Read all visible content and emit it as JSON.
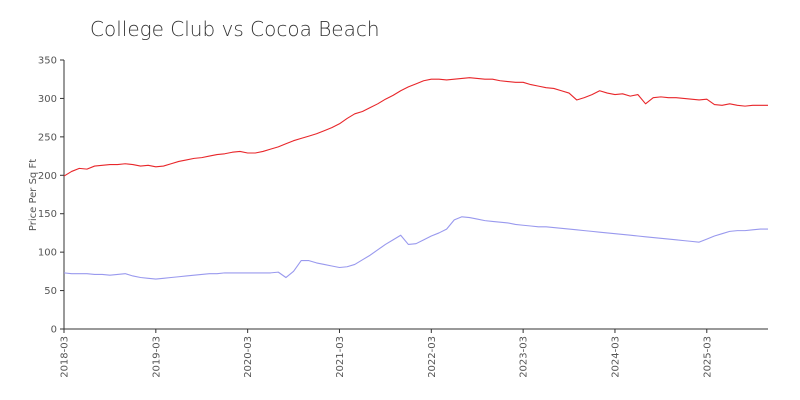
{
  "chart_data": {
    "type": "line",
    "title": "College Club vs Cocoa Beach",
    "xlabel": "",
    "ylabel": "Price Per Sq Ft",
    "xlim": [
      "2018-03",
      "2025-11"
    ],
    "ylim": [
      0,
      350
    ],
    "yticks": [
      0,
      50,
      100,
      150,
      200,
      250,
      300,
      350
    ],
    "xticks": [
      "2018-03",
      "2019-03",
      "2020-03",
      "2021-03",
      "2022-03",
      "2023-03",
      "2024-03",
      "2025-03"
    ],
    "grid": false,
    "legend": "none",
    "series": [
      {
        "color": "#e8262a",
        "points": [
          [
            "2018-03",
            199
          ],
          [
            "2018-04",
            205
          ],
          [
            "2018-05",
            209
          ],
          [
            "2018-06",
            208
          ],
          [
            "2018-07",
            212
          ],
          [
            "2018-08",
            213
          ],
          [
            "2018-09",
            214
          ],
          [
            "2018-10",
            214
          ],
          [
            "2018-11",
            215
          ],
          [
            "2018-12",
            214
          ],
          [
            "2019-01",
            212
          ],
          [
            "2019-02",
            213
          ],
          [
            "2019-03",
            211
          ],
          [
            "2019-04",
            212
          ],
          [
            "2019-05",
            215
          ],
          [
            "2019-06",
            218
          ],
          [
            "2019-07",
            220
          ],
          [
            "2019-08",
            222
          ],
          [
            "2019-09",
            223
          ],
          [
            "2019-10",
            225
          ],
          [
            "2019-11",
            227
          ],
          [
            "2019-12",
            228
          ],
          [
            "2020-01",
            230
          ],
          [
            "2020-02",
            231
          ],
          [
            "2020-03",
            229
          ],
          [
            "2020-04",
            229
          ],
          [
            "2020-05",
            231
          ],
          [
            "2020-06",
            234
          ],
          [
            "2020-07",
            237
          ],
          [
            "2020-08",
            241
          ],
          [
            "2020-09",
            245
          ],
          [
            "2020-10",
            248
          ],
          [
            "2020-11",
            251
          ],
          [
            "2020-12",
            254
          ],
          [
            "2021-01",
            258
          ],
          [
            "2021-02",
            262
          ],
          [
            "2021-03",
            267
          ],
          [
            "2021-04",
            274
          ],
          [
            "2021-05",
            280
          ],
          [
            "2021-06",
            283
          ],
          [
            "2021-07",
            288
          ],
          [
            "2021-08",
            293
          ],
          [
            "2021-09",
            299
          ],
          [
            "2021-10",
            304
          ],
          [
            "2021-11",
            310
          ],
          [
            "2021-12",
            315
          ],
          [
            "2022-01",
            319
          ],
          [
            "2022-02",
            323
          ],
          [
            "2022-03",
            325
          ],
          [
            "2022-04",
            325
          ],
          [
            "2022-05",
            324
          ],
          [
            "2022-06",
            325
          ],
          [
            "2022-07",
            326
          ],
          [
            "2022-08",
            327
          ],
          [
            "2022-09",
            326
          ],
          [
            "2022-10",
            325
          ],
          [
            "2022-11",
            325
          ],
          [
            "2022-12",
            323
          ],
          [
            "2023-01",
            322
          ],
          [
            "2023-02",
            321
          ],
          [
            "2023-03",
            321
          ],
          [
            "2023-04",
            318
          ],
          [
            "2023-05",
            316
          ],
          [
            "2023-06",
            314
          ],
          [
            "2023-07",
            313
          ],
          [
            "2023-08",
            310
          ],
          [
            "2023-09",
            307
          ],
          [
            "2023-10",
            298
          ],
          [
            "2023-11",
            301
          ],
          [
            "2023-12",
            305
          ],
          [
            "2024-01",
            310
          ],
          [
            "2024-02",
            307
          ],
          [
            "2024-03",
            305
          ],
          [
            "2024-04",
            306
          ],
          [
            "2024-05",
            303
          ],
          [
            "2024-06",
            305
          ],
          [
            "2024-07",
            293
          ],
          [
            "2024-08",
            301
          ],
          [
            "2024-09",
            302
          ],
          [
            "2024-10",
            301
          ],
          [
            "2024-11",
            301
          ],
          [
            "2024-12",
            300
          ],
          [
            "2025-01",
            299
          ],
          [
            "2025-02",
            298
          ],
          [
            "2025-03",
            299
          ],
          [
            "2025-04",
            292
          ],
          [
            "2025-05",
            291
          ],
          [
            "2025-06",
            293
          ],
          [
            "2025-07",
            291
          ],
          [
            "2025-08",
            290
          ],
          [
            "2025-09",
            291
          ],
          [
            "2025-10",
            291
          ],
          [
            "2025-11",
            291
          ]
        ]
      },
      {
        "color": "#9999ee",
        "points": [
          [
            "2018-03",
            73
          ],
          [
            "2018-04",
            72
          ],
          [
            "2018-05",
            72
          ],
          [
            "2018-06",
            72
          ],
          [
            "2018-07",
            71
          ],
          [
            "2018-08",
            71
          ],
          [
            "2018-09",
            70
          ],
          [
            "2018-10",
            71
          ],
          [
            "2018-11",
            72
          ],
          [
            "2018-12",
            69
          ],
          [
            "2019-01",
            67
          ],
          [
            "2019-02",
            66
          ],
          [
            "2019-03",
            65
          ],
          [
            "2019-04",
            66
          ],
          [
            "2019-05",
            67
          ],
          [
            "2019-06",
            68
          ],
          [
            "2019-07",
            69
          ],
          [
            "2019-08",
            70
          ],
          [
            "2019-09",
            71
          ],
          [
            "2019-10",
            72
          ],
          [
            "2019-11",
            72
          ],
          [
            "2019-12",
            73
          ],
          [
            "2020-01",
            73
          ],
          [
            "2020-02",
            73
          ],
          [
            "2020-03",
            73
          ],
          [
            "2020-04",
            73
          ],
          [
            "2020-05",
            73
          ],
          [
            "2020-06",
            73
          ],
          [
            "2020-07",
            74
          ],
          [
            "2020-08",
            67
          ],
          [
            "2020-09",
            75
          ],
          [
            "2020-10",
            89
          ],
          [
            "2020-11",
            89
          ],
          [
            "2020-12",
            86
          ],
          [
            "2021-01",
            84
          ],
          [
            "2021-02",
            82
          ],
          [
            "2021-03",
            80
          ],
          [
            "2021-04",
            81
          ],
          [
            "2021-05",
            84
          ],
          [
            "2021-06",
            90
          ],
          [
            "2021-07",
            96
          ],
          [
            "2021-08",
            103
          ],
          [
            "2021-09",
            110
          ],
          [
            "2021-10",
            116
          ],
          [
            "2021-11",
            122
          ],
          [
            "2021-12",
            110
          ],
          [
            "2022-01",
            111
          ],
          [
            "2022-02",
            116
          ],
          [
            "2022-03",
            121
          ],
          [
            "2022-04",
            125
          ],
          [
            "2022-05",
            130
          ],
          [
            "2022-06",
            142
          ],
          [
            "2022-07",
            146
          ],
          [
            "2022-08",
            145
          ],
          [
            "2022-09",
            143
          ],
          [
            "2022-10",
            141
          ],
          [
            "2022-11",
            140
          ],
          [
            "2022-12",
            139
          ],
          [
            "2023-01",
            138
          ],
          [
            "2023-02",
            136
          ],
          [
            "2023-03",
            135
          ],
          [
            "2023-04",
            134
          ],
          [
            "2023-05",
            133
          ],
          [
            "2023-06",
            133
          ],
          [
            "2023-07",
            132
          ],
          [
            "2023-08",
            131
          ],
          [
            "2023-09",
            130
          ],
          [
            "2023-10",
            129
          ],
          [
            "2023-11",
            128
          ],
          [
            "2023-12",
            127
          ],
          [
            "2024-01",
            126
          ],
          [
            "2024-02",
            125
          ],
          [
            "2024-03",
            124
          ],
          [
            "2024-04",
            123
          ],
          [
            "2024-05",
            122
          ],
          [
            "2024-06",
            121
          ],
          [
            "2024-07",
            120
          ],
          [
            "2024-08",
            119
          ],
          [
            "2024-09",
            118
          ],
          [
            "2024-10",
            117
          ],
          [
            "2024-11",
            116
          ],
          [
            "2024-12",
            115
          ],
          [
            "2025-01",
            114
          ],
          [
            "2025-02",
            113
          ],
          [
            "2025-03",
            117
          ],
          [
            "2025-04",
            121
          ],
          [
            "2025-05",
            124
          ],
          [
            "2025-06",
            127
          ],
          [
            "2025-07",
            128
          ],
          [
            "2025-08",
            128
          ],
          [
            "2025-09",
            129
          ],
          [
            "2025-10",
            130
          ],
          [
            "2025-11",
            130
          ]
        ]
      }
    ]
  }
}
